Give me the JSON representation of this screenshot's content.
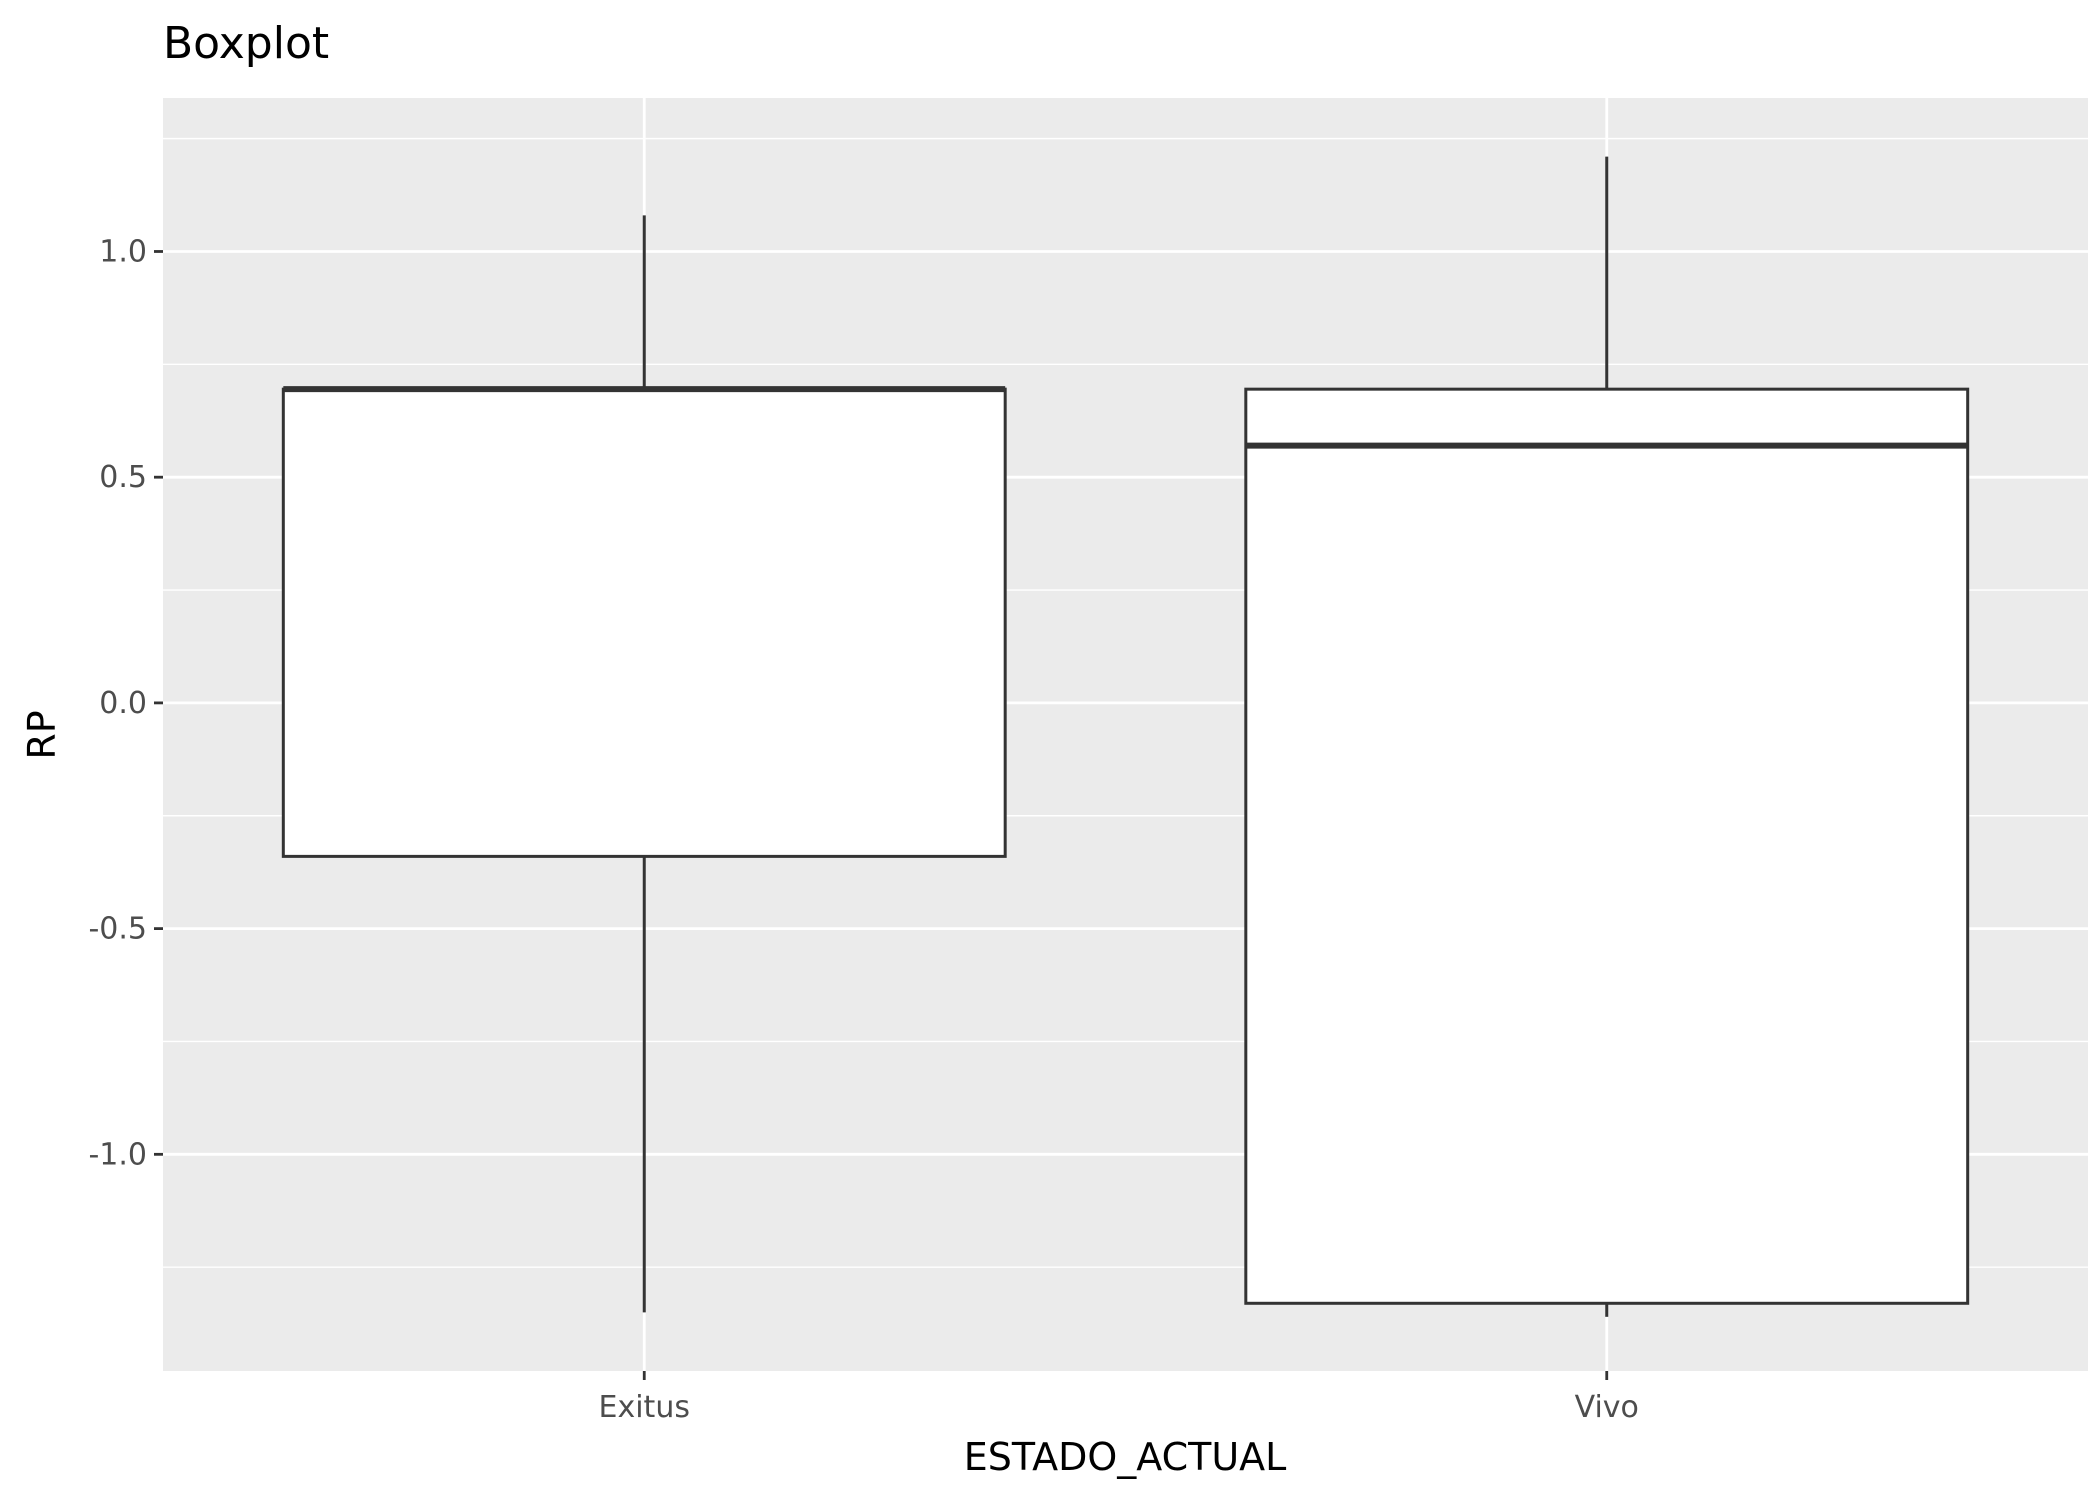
{
  "chart_data": {
    "type": "boxplot",
    "title": "Boxplot",
    "xlabel": "ESTADO_ACTUAL",
    "ylabel": "RP",
    "categories": [
      "Exitus",
      "Vivo"
    ],
    "boxes": [
      {
        "category": "Exitus",
        "lower_whisker": -1.35,
        "q1": -0.34,
        "median": 0.695,
        "q3": 0.695,
        "upper_whisker": 1.08
      },
      {
        "category": "Vivo",
        "lower_whisker": -1.36,
        "q1": -1.33,
        "median": 0.57,
        "q3": 0.695,
        "upper_whisker": 1.21
      }
    ],
    "y_ticks": [
      -1.0,
      -0.5,
      0.0,
      0.5,
      1.0
    ],
    "y_tick_labels": [
      "-1.0",
      "-0.5",
      "0.0",
      "0.5",
      "1.0"
    ],
    "ylim": [
      -1.48,
      1.34
    ],
    "grid": true,
    "colors": {
      "panel_background": "#ebebeb",
      "grid_line": "#ffffff",
      "box_fill": "#ffffff",
      "box_stroke": "#333333",
      "tick_label": "#4d4d4d"
    }
  }
}
